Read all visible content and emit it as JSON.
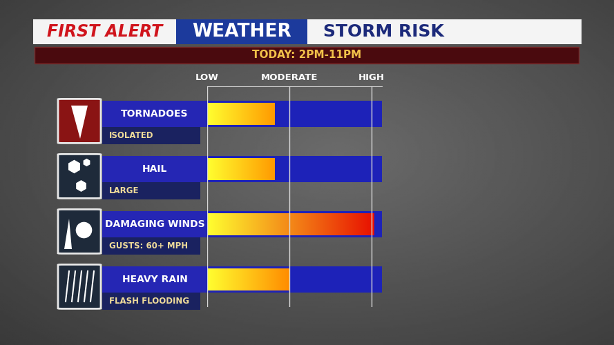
{
  "chart_data": {
    "type": "bar",
    "orientation": "horizontal",
    "brand": "FIRST ALERT",
    "section": "WEATHER",
    "title": "STORM RISK",
    "subtitle": "TODAY: 2PM-11PM",
    "categories": [
      "TORNADOES",
      "HAIL",
      "DAMAGING WINDS",
      "HEAVY RAIN"
    ],
    "annotations": [
      "ISOLATED",
      "LARGE",
      "GUSTS: 60+ MPH",
      "FLASH FLOODING"
    ],
    "values": [
      0.82,
      0.82,
      2.03,
      1
    ],
    "colors": [
      "#ff9a00",
      "#ff9a00",
      "#e81000",
      "#ff8c00"
    ],
    "xlim": [
      0,
      2.13
    ],
    "xticks": [
      {
        "value": 0,
        "label": "LOW"
      },
      {
        "value": 1,
        "label": "MODERATE"
      },
      {
        "value": 2,
        "label": "HIGH"
      }
    ],
    "grid": true
  }
}
